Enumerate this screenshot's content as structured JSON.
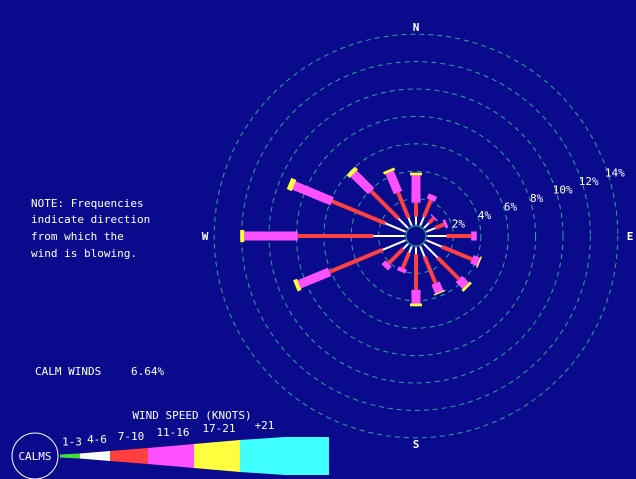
{
  "compass": {
    "north": "N",
    "east": "E",
    "south": "S",
    "west": "W"
  },
  "note": {
    "lines": [
      "NOTE: Frequencies",
      "indicate direction",
      "from which the",
      "wind is blowing."
    ]
  },
  "calm": {
    "label": "CALM WINDS",
    "value": "6.64%"
  },
  "legend": {
    "title": "WIND SPEED (KNOTS)",
    "calms_label": "CALMS",
    "bins": [
      {
        "label": "1-3",
        "color": "#40e040"
      },
      {
        "label": "4-6",
        "color": "#ffffff"
      },
      {
        "label": "7-10",
        "color": "#ff4040"
      },
      {
        "label": "11-16",
        "color": "#ff50ff"
      },
      {
        "label": "17-21",
        "color": "#ffff40"
      },
      {
        "label": "+21",
        "color": "#40ffff"
      }
    ]
  },
  "chart_data": {
    "type": "windrose",
    "ring_labels": [
      "2%",
      "4%",
      "6%",
      "8%",
      "10%",
      "12%",
      "14%"
    ],
    "ring_values": [
      2,
      4,
      6,
      8,
      10,
      12,
      14
    ],
    "calm_percent": 6.64,
    "speed_bins": [
      "1-3",
      "4-6",
      "7-10",
      "11-16",
      "17-21",
      "+21"
    ],
    "directions": [
      {
        "dir": "N",
        "values": [
          0.1,
          0.6,
          1.0,
          2.0,
          0.2,
          0.0
        ]
      },
      {
        "dir": "NNE",
        "values": [
          0.1,
          0.7,
          1.3,
          0.4,
          0.0,
          0.0
        ]
      },
      {
        "dir": "NE",
        "values": [
          0.1,
          0.5,
          0.5,
          0.1,
          0.0,
          0.0
        ]
      },
      {
        "dir": "ENE",
        "values": [
          0.1,
          0.7,
          0.7,
          0.2,
          0.0,
          0.0
        ]
      },
      {
        "dir": "E",
        "values": [
          0.1,
          1.4,
          1.8,
          0.4,
          0.0,
          0.0
        ]
      },
      {
        "dir": "ESE",
        "values": [
          0.1,
          1.2,
          2.4,
          0.5,
          0.1,
          0.0
        ]
      },
      {
        "dir": "SE",
        "values": [
          0.1,
          1.4,
          2.2,
          0.7,
          0.2,
          0.0
        ]
      },
      {
        "dir": "SSE",
        "values": [
          0.1,
          0.8,
          2.1,
          0.7,
          0.1,
          0.0
        ]
      },
      {
        "dir": "S",
        "values": [
          0.1,
          0.5,
          2.6,
          1.0,
          0.2,
          0.0
        ]
      },
      {
        "dir": "SSW",
        "values": [
          0.1,
          0.5,
          1.2,
          0.3,
          0.0,
          0.0
        ]
      },
      {
        "dir": "SW",
        "values": [
          0.1,
          0.5,
          1.5,
          0.4,
          0.0,
          0.0
        ]
      },
      {
        "dir": "WSW",
        "values": [
          0.1,
          1.8,
          4.2,
          2.4,
          0.3,
          0.0
        ]
      },
      {
        "dir": "W",
        "values": [
          0.1,
          2.3,
          5.5,
          3.9,
          0.3,
          0.0
        ]
      },
      {
        "dir": "WNW",
        "values": [
          0.1,
          1.6,
          4.2,
          3.0,
          0.4,
          0.0
        ]
      },
      {
        "dir": "NW",
        "values": [
          0.1,
          1.0,
          2.8,
          1.8,
          0.3,
          0.0
        ]
      },
      {
        "dir": "NNW",
        "values": [
          0.1,
          0.6,
          2.0,
          1.6,
          0.2,
          0.0
        ]
      }
    ]
  }
}
